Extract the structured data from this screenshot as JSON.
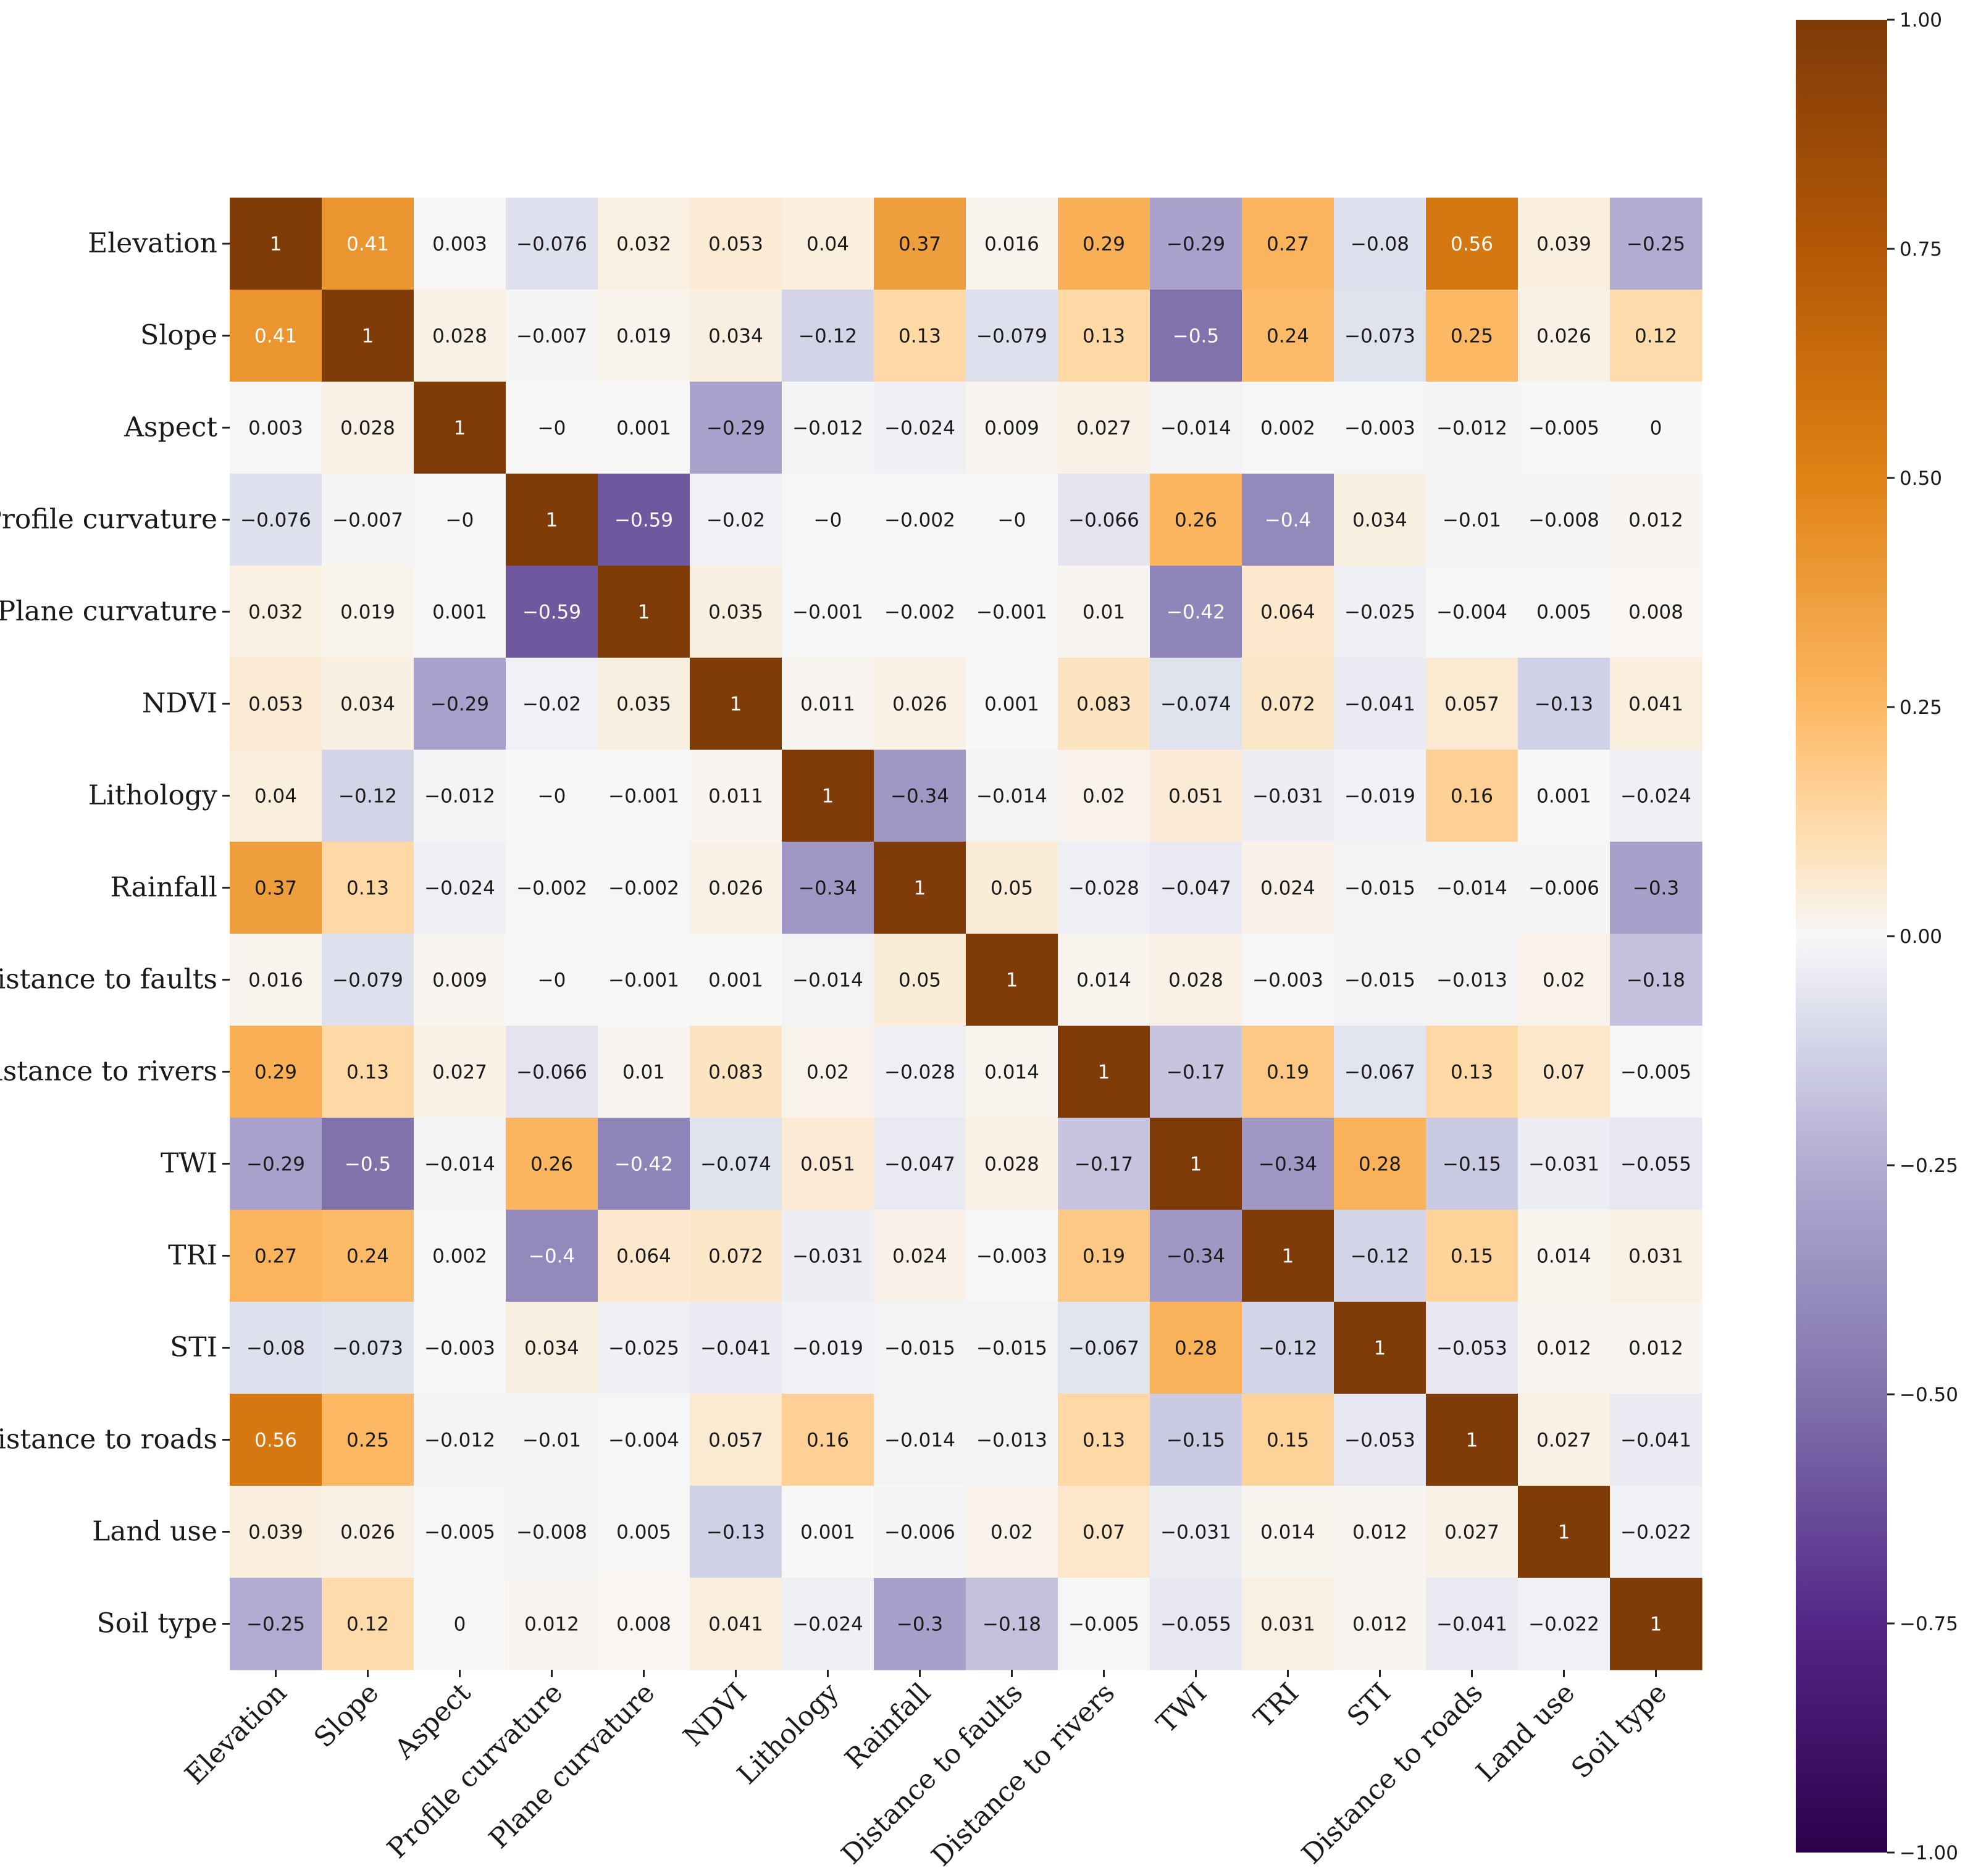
{
  "chart_data": {
    "type": "heatmap",
    "title": "",
    "xlabel": "",
    "ylabel": "",
    "labels": [
      "Elevation",
      "Slope",
      "Aspect",
      "Profile curvature",
      "Plane curvature",
      "NDVI",
      "Lithology",
      "Rainfall",
      "Distance to faults",
      "Distance to rivers",
      "TWI",
      "TRI",
      "STI",
      "Distance to roads",
      "Land use",
      "Soil type"
    ],
    "matrix": [
      [
        "1",
        "0.41",
        "0.003",
        "−0.076",
        "0.032",
        "0.053",
        "0.04",
        "0.37",
        "0.016",
        "0.29",
        "−0.29",
        "0.27",
        "−0.08",
        "0.56",
        "0.039",
        "−0.25"
      ],
      [
        "0.41",
        "1",
        "0.028",
        "−0.007",
        "0.019",
        "0.034",
        "−0.12",
        "0.13",
        "−0.079",
        "0.13",
        "−0.5",
        "0.24",
        "−0.073",
        "0.25",
        "0.026",
        "0.12"
      ],
      [
        "0.003",
        "0.028",
        "1",
        "−0",
        "0.001",
        "−0.29",
        "−0.012",
        "−0.024",
        "0.009",
        "0.027",
        "−0.014",
        "0.002",
        "−0.003",
        "−0.012",
        "−0.005",
        "0"
      ],
      [
        "−0.076",
        "−0.007",
        "−0",
        "1",
        "−0.59",
        "−0.02",
        "−0",
        "−0.002",
        "−0",
        "−0.066",
        "0.26",
        "−0.4",
        "0.034",
        "−0.01",
        "−0.008",
        "0.012"
      ],
      [
        "0.032",
        "0.019",
        "0.001",
        "−0.59",
        "1",
        "0.035",
        "−0.001",
        "−0.002",
        "−0.001",
        "0.01",
        "−0.42",
        "0.064",
        "−0.025",
        "−0.004",
        "0.005",
        "0.008"
      ],
      [
        "0.053",
        "0.034",
        "−0.29",
        "−0.02",
        "0.035",
        "1",
        "0.011",
        "0.026",
        "0.001",
        "0.083",
        "−0.074",
        "0.072",
        "−0.041",
        "0.057",
        "−0.13",
        "0.041"
      ],
      [
        "0.04",
        "−0.12",
        "−0.012",
        "−0",
        "−0.001",
        "0.011",
        "1",
        "−0.34",
        "−0.014",
        "0.02",
        "0.051",
        "−0.031",
        "−0.019",
        "0.16",
        "0.001",
        "−0.024"
      ],
      [
        "0.37",
        "0.13",
        "−0.024",
        "−0.002",
        "−0.002",
        "0.026",
        "−0.34",
        "1",
        "0.05",
        "−0.028",
        "−0.047",
        "0.024",
        "−0.015",
        "−0.014",
        "−0.006",
        "−0.3"
      ],
      [
        "0.016",
        "−0.079",
        "0.009",
        "−0",
        "−0.001",
        "0.001",
        "−0.014",
        "0.05",
        "1",
        "0.014",
        "0.028",
        "−0.003",
        "−0.015",
        "−0.013",
        "0.02",
        "−0.18"
      ],
      [
        "0.29",
        "0.13",
        "0.027",
        "−0.066",
        "0.01",
        "0.083",
        "0.02",
        "−0.028",
        "0.014",
        "1",
        "−0.17",
        "0.19",
        "−0.067",
        "0.13",
        "0.07",
        "−0.005"
      ],
      [
        "−0.29",
        "−0.5",
        "−0.014",
        "0.26",
        "−0.42",
        "−0.074",
        "0.051",
        "−0.047",
        "0.028",
        "−0.17",
        "1",
        "−0.34",
        "0.28",
        "−0.15",
        "−0.031",
        "−0.055"
      ],
      [
        "0.27",
        "0.24",
        "0.002",
        "−0.4",
        "0.064",
        "0.072",
        "−0.031",
        "0.024",
        "−0.003",
        "0.19",
        "−0.34",
        "1",
        "−0.12",
        "0.15",
        "0.014",
        "0.031"
      ],
      [
        "−0.08",
        "−0.073",
        "−0.003",
        "0.034",
        "−0.025",
        "−0.041",
        "−0.019",
        "−0.015",
        "−0.015",
        "−0.067",
        "0.28",
        "−0.12",
        "1",
        "−0.053",
        "0.012",
        "0.012"
      ],
      [
        "0.56",
        "0.25",
        "−0.012",
        "−0.01",
        "−0.004",
        "0.057",
        "0.16",
        "−0.014",
        "−0.013",
        "0.13",
        "−0.15",
        "0.15",
        "−0.053",
        "1",
        "0.027",
        "−0.041"
      ],
      [
        "0.039",
        "0.026",
        "−0.005",
        "−0.008",
        "0.005",
        "−0.13",
        "0.001",
        "−0.006",
        "0.02",
        "0.07",
        "−0.031",
        "0.014",
        "0.012",
        "0.027",
        "1",
        "−0.022"
      ],
      [
        "−0.25",
        "0.12",
        "0",
        "0.012",
        "0.008",
        "0.041",
        "−0.024",
        "−0.3",
        "−0.18",
        "−0.005",
        "−0.055",
        "0.031",
        "0.012",
        "−0.041",
        "−0.022",
        "1"
      ]
    ],
    "colorbar": {
      "range": [
        -1.0,
        1.0
      ],
      "ticks": [
        "1.00",
        "0.75",
        "0.50",
        "0.25",
        "0.00",
        "−0.25",
        "−0.50",
        "−0.75",
        "−1.00"
      ],
      "tick_values": [
        1.0,
        0.75,
        0.5,
        0.25,
        0.0,
        -0.25,
        -0.5,
        -0.75,
        -1.0
      ],
      "colormap": "PuOr_r",
      "stops": [
        {
          "v": -1.0,
          "color": "#2d004b"
        },
        {
          "v": -0.75,
          "color": "#542788"
        },
        {
          "v": -0.5,
          "color": "#8073ac"
        },
        {
          "v": -0.25,
          "color": "#b2abd2"
        },
        {
          "v": -0.1,
          "color": "#d8daeb"
        },
        {
          "v": 0.0,
          "color": "#f7f7f7"
        },
        {
          "v": 0.1,
          "color": "#fee0b6"
        },
        {
          "v": 0.25,
          "color": "#fdb863"
        },
        {
          "v": 0.5,
          "color": "#e08214"
        },
        {
          "v": 0.75,
          "color": "#b35806"
        },
        {
          "v": 1.0,
          "color": "#7f3b08"
        }
      ]
    }
  }
}
